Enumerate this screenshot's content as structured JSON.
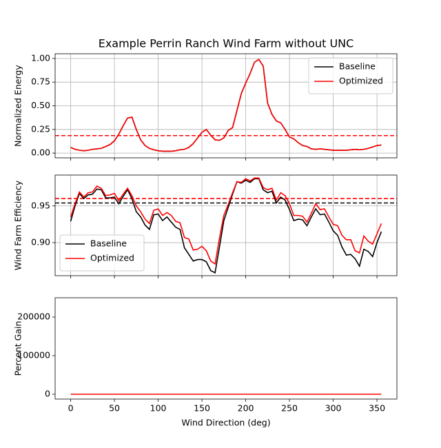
{
  "chart_data": [
    {
      "type": "line",
      "title": "Example Perrin Ranch Wind Farm without UNC",
      "ylabel": "Normalized Energy",
      "x": [
        0,
        5,
        10,
        15,
        20,
        25,
        30,
        35,
        40,
        45,
        50,
        55,
        60,
        65,
        70,
        75,
        80,
        85,
        90,
        95,
        100,
        105,
        110,
        115,
        120,
        125,
        130,
        135,
        140,
        145,
        150,
        155,
        160,
        165,
        170,
        175,
        180,
        185,
        190,
        195,
        200,
        205,
        210,
        215,
        220,
        225,
        230,
        235,
        240,
        245,
        250,
        255,
        260,
        265,
        270,
        275,
        280,
        285,
        290,
        295,
        300,
        305,
        310,
        315,
        320,
        325,
        330,
        335,
        340,
        345,
        350,
        355
      ],
      "series": [
        {
          "name": "Baseline",
          "color": "#000000",
          "values": [
            0.06,
            0.04,
            0.03,
            0.025,
            0.03,
            0.04,
            0.045,
            0.05,
            0.07,
            0.09,
            0.13,
            0.2,
            0.29,
            0.37,
            0.38,
            0.25,
            0.14,
            0.08,
            0.05,
            0.035,
            0.025,
            0.02,
            0.02,
            0.02,
            0.025,
            0.035,
            0.04,
            0.06,
            0.1,
            0.16,
            0.22,
            0.25,
            0.19,
            0.14,
            0.135,
            0.16,
            0.24,
            0.27,
            0.45,
            0.63,
            0.74,
            0.84,
            0.96,
            0.99,
            0.92,
            0.53,
            0.41,
            0.34,
            0.32,
            0.25,
            0.17,
            0.15,
            0.11,
            0.08,
            0.07,
            0.045,
            0.04,
            0.045,
            0.04,
            0.035,
            0.03,
            0.03,
            0.03,
            0.03,
            0.035,
            0.04,
            0.035,
            0.04,
            0.05,
            0.065,
            0.08,
            0.085
          ]
        },
        {
          "name": "Optimized",
          "color": "#ff0000",
          "values": [
            0.06,
            0.04,
            0.03,
            0.025,
            0.03,
            0.04,
            0.045,
            0.05,
            0.07,
            0.09,
            0.13,
            0.2,
            0.29,
            0.37,
            0.38,
            0.25,
            0.14,
            0.08,
            0.05,
            0.035,
            0.025,
            0.02,
            0.02,
            0.02,
            0.025,
            0.035,
            0.04,
            0.06,
            0.1,
            0.16,
            0.22,
            0.25,
            0.19,
            0.14,
            0.135,
            0.16,
            0.24,
            0.27,
            0.45,
            0.63,
            0.74,
            0.84,
            0.96,
            0.99,
            0.92,
            0.53,
            0.41,
            0.34,
            0.32,
            0.25,
            0.17,
            0.15,
            0.11,
            0.08,
            0.07,
            0.045,
            0.04,
            0.045,
            0.04,
            0.035,
            0.03,
            0.03,
            0.03,
            0.03,
            0.035,
            0.04,
            0.035,
            0.04,
            0.05,
            0.065,
            0.08,
            0.085
          ]
        }
      ],
      "hlines": [
        {
          "value": 0.185,
          "color": "#000000"
        },
        {
          "value": 0.185,
          "color": "#ff0000"
        }
      ],
      "xlim": [
        -17.75,
        372.75
      ],
      "xticks": [
        0,
        50,
        100,
        150,
        200,
        250,
        300,
        350
      ],
      "ylim": [
        -0.05,
        1.05
      ],
      "yticks": [
        {
          "value": 0,
          "label": "0.00"
        },
        0.25,
        {
          "value": 0.5,
          "label": "0.50"
        },
        0.75,
        {
          "value": 1,
          "label": "1.00"
        }
      ],
      "grid": true,
      "legend": "upper right"
    },
    {
      "type": "line",
      "ylabel": "Wind Farm Efficiency",
      "x": [
        0,
        5,
        10,
        15,
        20,
        25,
        30,
        35,
        40,
        45,
        50,
        55,
        60,
        65,
        70,
        75,
        80,
        85,
        90,
        95,
        100,
        105,
        110,
        115,
        120,
        125,
        130,
        135,
        140,
        145,
        150,
        155,
        160,
        165,
        170,
        175,
        180,
        185,
        190,
        195,
        200,
        205,
        210,
        215,
        220,
        225,
        230,
        235,
        240,
        245,
        250,
        255,
        260,
        265,
        270,
        275,
        280,
        285,
        290,
        295,
        300,
        305,
        310,
        315,
        320,
        325,
        330,
        335,
        340,
        345,
        350,
        355
      ],
      "series": [
        {
          "name": "Baseline",
          "color": "#000000",
          "values": [
            0.929,
            0.95,
            0.967,
            0.96,
            0.965,
            0.966,
            0.973,
            0.972,
            0.961,
            0.961,
            0.962,
            0.953,
            0.963,
            0.972,
            0.96,
            0.942,
            0.935,
            0.924,
            0.918,
            0.938,
            0.939,
            0.93,
            0.935,
            0.928,
            0.921,
            0.918,
            0.893,
            0.884,
            0.875,
            0.877,
            0.877,
            0.874,
            0.862,
            0.859,
            0.894,
            0.93,
            0.948,
            0.966,
            0.983,
            0.981,
            0.985,
            0.982,
            0.987,
            0.987,
            0.972,
            0.968,
            0.97,
            0.954,
            0.962,
            0.958,
            0.945,
            0.93,
            0.932,
            0.931,
            0.923,
            0.935,
            0.946,
            0.938,
            0.939,
            0.928,
            0.916,
            0.91,
            0.894,
            0.883,
            0.884,
            0.878,
            0.868,
            0.891,
            0.888,
            0.881,
            0.9,
            0.915
          ]
        },
        {
          "name": "Optimized",
          "color": "#ff0000",
          "values": [
            0.935,
            0.953,
            0.969,
            0.962,
            0.968,
            0.969,
            0.977,
            0.974,
            0.964,
            0.965,
            0.967,
            0.957,
            0.966,
            0.974,
            0.964,
            0.95,
            0.942,
            0.932,
            0.926,
            0.944,
            0.946,
            0.937,
            0.941,
            0.937,
            0.929,
            0.927,
            0.907,
            0.905,
            0.89,
            0.891,
            0.895,
            0.889,
            0.875,
            0.871,
            0.906,
            0.937,
            0.952,
            0.968,
            0.983,
            0.982,
            0.987,
            0.984,
            0.988,
            0.988,
            0.975,
            0.972,
            0.974,
            0.958,
            0.968,
            0.964,
            0.953,
            0.937,
            0.937,
            0.936,
            0.928,
            0.94,
            0.953,
            0.945,
            0.946,
            0.935,
            0.925,
            0.923,
            0.91,
            0.904,
            0.904,
            0.889,
            0.886,
            0.909,
            0.902,
            0.898,
            0.912,
            0.926
          ]
        }
      ],
      "hlines": [
        {
          "value": 0.954,
          "color": "#000000"
        },
        {
          "value": 0.96,
          "color": "#ff0000"
        }
      ],
      "xlim": [
        -17.75,
        372.75
      ],
      "xticks": [
        0,
        50,
        100,
        150,
        200,
        250,
        300,
        350
      ],
      "ylim": [
        0.855,
        0.992
      ],
      "yticks": [
        {
          "value": 0.9,
          "label": "0.90"
        },
        0.95
      ],
      "grid": true,
      "legend": "lower left"
    },
    {
      "type": "line",
      "ylabel": "Percent Gain",
      "xlabel": "Wind Direction (deg)",
      "x": [
        0,
        5,
        10,
        15,
        20,
        25,
        30,
        35,
        40,
        45,
        50,
        55,
        60,
        65,
        70,
        75,
        80,
        85,
        90,
        95,
        100,
        105,
        110,
        115,
        120,
        125,
        130,
        135,
        140,
        145,
        150,
        155,
        160,
        165,
        170,
        175,
        180,
        185,
        190,
        195,
        200,
        205,
        210,
        215,
        220,
        225,
        230,
        235,
        240,
        245,
        250,
        255,
        260,
        265,
        270,
        275,
        280,
        285,
        290,
        295,
        300,
        305,
        310,
        315,
        320,
        325,
        330,
        335,
        340,
        345,
        350,
        355
      ],
      "series": [
        {
          "color": "#ff0000",
          "values": [
            0,
            0,
            0,
            0,
            0,
            0,
            0,
            0,
            0,
            0,
            0,
            0,
            0,
            0,
            0,
            0,
            0,
            0,
            0,
            0,
            0,
            0,
            0,
            0,
            0,
            0,
            0,
            0,
            0,
            0,
            0,
            0,
            0,
            0,
            0,
            0,
            0,
            0,
            0,
            0,
            0,
            0,
            0,
            0,
            0,
            0,
            0,
            0,
            0,
            0,
            0,
            0,
            0,
            0,
            0,
            0,
            0,
            0,
            0,
            0,
            0,
            0,
            0,
            0,
            0,
            0,
            0,
            0,
            0,
            0,
            0,
            0
          ]
        }
      ],
      "xlim": [
        -17.75,
        372.75
      ],
      "xticks": [
        0,
        50,
        100,
        150,
        200,
        250,
        300,
        350
      ],
      "ylim": [
        -12500,
        250000
      ],
      "yticks": [
        0,
        100000,
        200000
      ],
      "grid": false
    }
  ]
}
